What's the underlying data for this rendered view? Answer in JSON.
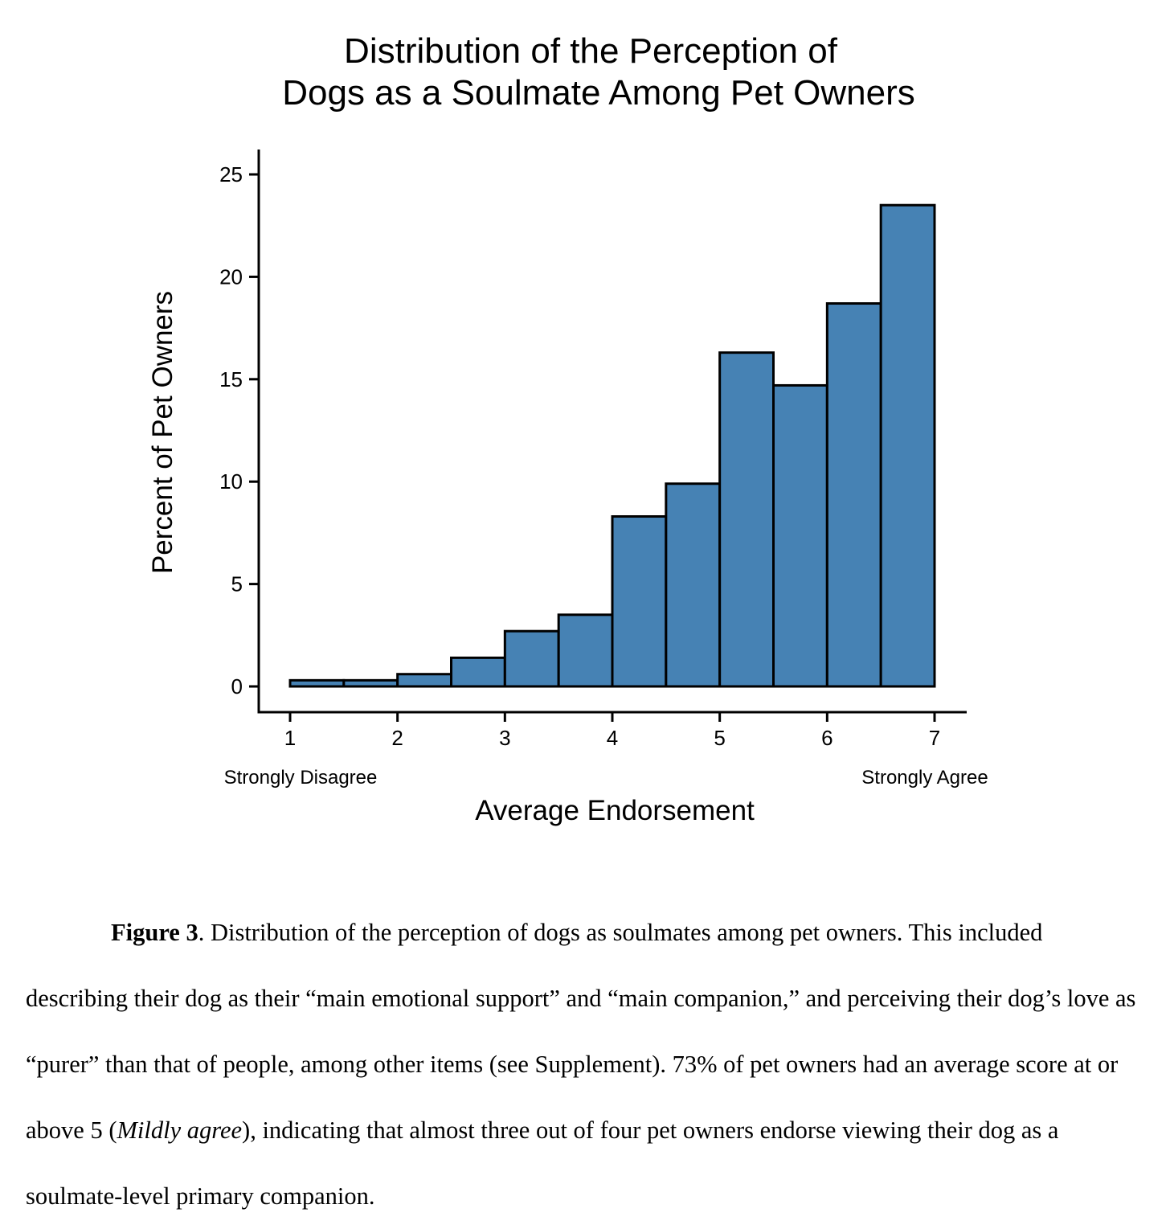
{
  "chart_data": {
    "type": "bar",
    "title_lines": [
      "Distribution of the Perception of",
      "Dogs as a Soulmate Among Pet Owners"
    ],
    "xlabel": "Average Endorsement",
    "ylabel": "Percent of Pet Owners",
    "xlim": [
      1,
      7
    ],
    "ylim": [
      0,
      25
    ],
    "x_ticks": [
      1,
      2,
      3,
      4,
      5,
      6,
      7
    ],
    "y_ticks": [
      0,
      5,
      10,
      15,
      20,
      25
    ],
    "x_endpoint_labels": {
      "left": "Strongly Disagree",
      "right": "Strongly Agree"
    },
    "bin_width": 0.5,
    "bin_starts": [
      1,
      1.5,
      2,
      2.5,
      3,
      3.5,
      4,
      4.5,
      5,
      5.5,
      6,
      6.5
    ],
    "values": [
      0.3,
      0.3,
      0.6,
      1.4,
      2.7,
      3.5,
      8.3,
      9.9,
      16.3,
      14.7,
      18.7,
      23.5
    ],
    "bar_fill": "#4682B4",
    "bar_edge": "#000000",
    "grid": false
  },
  "caption": {
    "label": "Figure 3",
    "text_before": ". Distribution of the perception of dogs as soulmates among pet owners. This included describing their dog as their “main emotional support” and “main companion,” and perceiving their dog’s love as “purer” than that of people, among other items (see Supplement). 73% of pet owners had an average score at or above 5 (",
    "italic": "Mildly agree",
    "text_after": "), indicating that almost three out of four pet owners endorse viewing their dog as a soulmate-level primary companion."
  }
}
